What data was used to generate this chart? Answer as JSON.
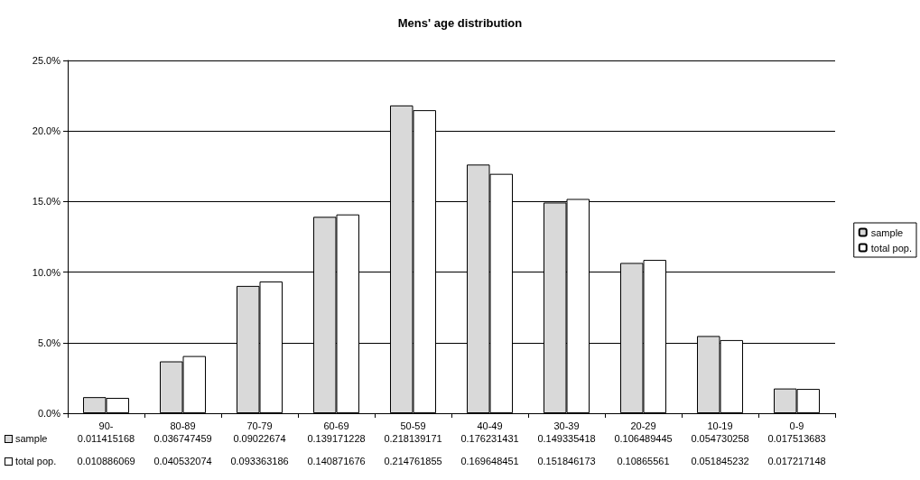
{
  "chart_data": {
    "type": "bar",
    "title": "Mens' age distribution",
    "categories": [
      "90-",
      "80-89",
      "70-79",
      "60-69",
      "50-59",
      "40-49",
      "30-39",
      "20-29",
      "10-19",
      "0-9"
    ],
    "series": [
      {
        "name": "sample",
        "color": "#d9d9d9",
        "values": [
          0.011415168,
          0.036747459,
          0.09022674,
          0.139171228,
          0.218139171,
          0.176231431,
          0.149335418,
          0.106489445,
          0.054730258,
          0.017513683
        ]
      },
      {
        "name": "total pop.",
        "color": "#ffffff",
        "values": [
          0.010886069,
          0.040532074,
          0.093363186,
          0.140871676,
          0.214761855,
          0.169648451,
          0.151846173,
          0.10865561,
          0.051845232,
          0.017217148
        ]
      }
    ],
    "ylim": [
      0,
      0.25
    ],
    "yticks": [
      {
        "value": 0,
        "label": "0.0%"
      },
      {
        "value": 0.05,
        "label": "5.0%"
      },
      {
        "value": 0.1,
        "label": "10.0%"
      },
      {
        "value": 0.15,
        "label": "15.0%"
      },
      {
        "value": 0.2,
        "label": "20.0%"
      },
      {
        "value": 0.25,
        "label": "25.0%"
      }
    ],
    "grid": "y",
    "legend": "right",
    "data_labels": true
  }
}
